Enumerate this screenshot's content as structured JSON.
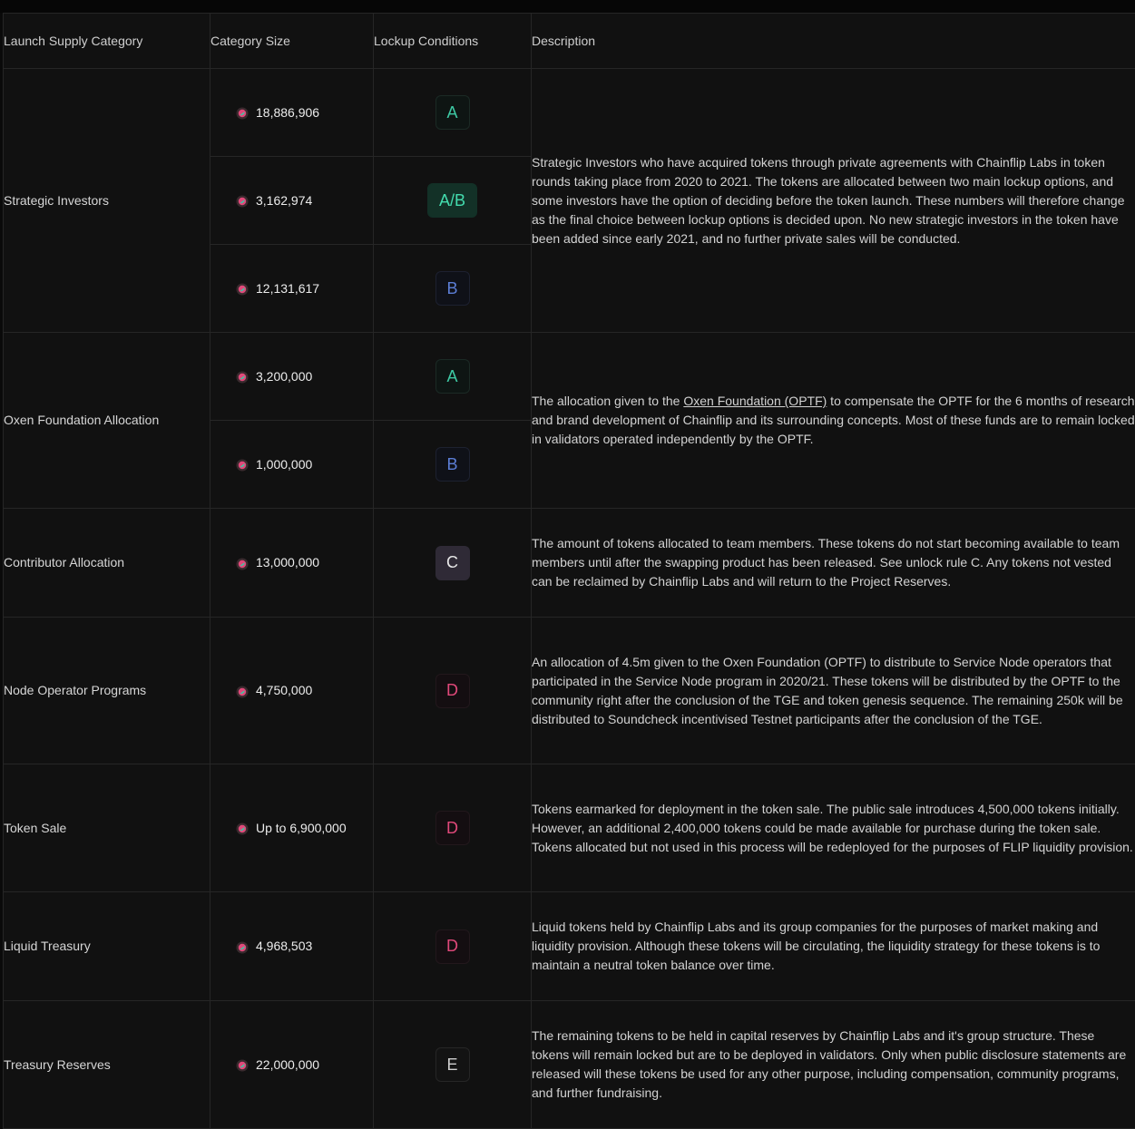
{
  "headers": [
    "Launch Supply Category",
    "Category Size",
    "Lockup Conditions",
    "Description"
  ],
  "colors": {
    "rule_a": "#3ec9a4",
    "rule_b": "#5c7ed6",
    "rule_c": "#e8e8e8",
    "rule_d": "#e0497a",
    "rule_e": "#cfcfcf"
  },
  "icon": "flip-token-icon",
  "rows": [
    {
      "category": "Strategic Investors",
      "subrows": [
        {
          "size": "18,886,906",
          "lockup": "A"
        },
        {
          "size": "3,162,974",
          "lockup": "A/B"
        },
        {
          "size": "12,131,617",
          "lockup": "B"
        }
      ],
      "description": "Strategic Investors who have acquired tokens through private agreements with Chainflip Labs in token rounds taking place from 2020 to 2021. The tokens are allocated between two main lockup options, and some investors have the option of deciding before the token launch. These numbers will therefore change as the final choice between lockup options is decided upon. No new strategic investors in the token have been added since early 2021, and no further private sales will be conducted."
    },
    {
      "category": "Oxen Foundation Allocation",
      "subrows": [
        {
          "size": "3,200,000",
          "lockup": "A"
        },
        {
          "size": "1,000,000",
          "lockup": "B"
        }
      ],
      "description_pre": "The allocation given to the ",
      "description_link": "Oxen Foundation (OPTF)",
      "description_post": " to compensate the OPTF for the 6 months of research and brand development of Chainflip and its surrounding concepts. Most of these funds are to remain locked in validators operated independently by the OPTF."
    },
    {
      "category": "Contributor Allocation",
      "subrows": [
        {
          "size": "13,000,000",
          "lockup": "C"
        }
      ],
      "description": "The amount of tokens allocated to team members. These tokens do not start becoming available to team members until after the swapping product has been released. See unlock rule C. Any tokens not vested can be reclaimed by Chainflip Labs and will return to the Project Reserves."
    },
    {
      "category": "Node Operator Programs",
      "subrows": [
        {
          "size": "4,750,000",
          "lockup": "D"
        }
      ],
      "description": "An allocation of 4.5m given to the Oxen Foundation (OPTF) to distribute to Service Node operators that participated in the Service Node program in 2020/21. These tokens will be distributed by the OPTF to the community right after the conclusion of the TGE and token genesis sequence. The remaining 250k will be distributed to Soundcheck incentivised Testnet participants after the conclusion of the TGE."
    },
    {
      "category": "Token Sale",
      "subrows": [
        {
          "size": "Up to 6,900,000",
          "lockup": "D"
        }
      ],
      "description": "Tokens earmarked for deployment in the token sale. The public sale introduces 4,500,000 tokens initially. However, an additional 2,400,000 tokens could be made available for purchase during the token sale. Tokens allocated but not used in this process will be redeployed for the purposes of FLIP liquidity provision."
    },
    {
      "category": "Liquid Treasury",
      "subrows": [
        {
          "size": "4,968,503",
          "lockup": "D"
        }
      ],
      "description": "Liquid tokens held by Chainflip Labs and its group companies for the purposes of market making and liquidity provision. Although these tokens will be circulating, the liquidity strategy for these tokens is to maintain a neutral token balance over time."
    },
    {
      "category": "Treasury Reserves",
      "subrows": [
        {
          "size": "22,000,000",
          "lockup": "E"
        }
      ],
      "description": "The remaining tokens to be held in capital reserves by Chainflip Labs and it's group structure. These tokens will remain locked but are to be deployed in validators. Only when public disclosure statements are released will these tokens be used for any other purpose, including compensation, community programs, and further fundraising."
    }
  ]
}
